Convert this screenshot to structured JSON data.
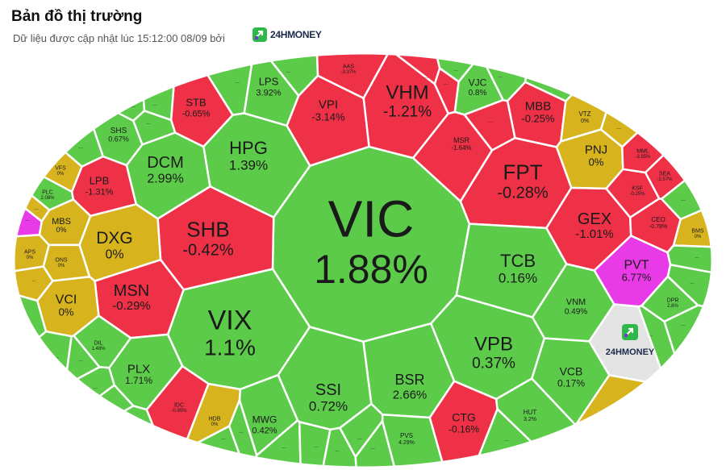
{
  "header": {
    "title": "Bản đồ thị trường",
    "subtitle": "Dữ liệu được cập nhật lúc 15:12:00 08/09 bởi",
    "brand": "24HMONEY"
  },
  "colors": {
    "up": "#5ccb4a",
    "down": "#ef3147",
    "flat": "#d7b41e",
    "ceiling": "#e83ae6",
    "none": "#e3e3e3",
    "background": "#ffffff"
  },
  "tiles": [
    {
      "symbol": "VIC",
      "change": "1.88%",
      "status": "up"
    },
    {
      "symbol": "VHM",
      "change": "-1.21%",
      "status": "down"
    },
    {
      "symbol": "VIX",
      "change": "1.1%",
      "status": "up"
    },
    {
      "symbol": "FPT",
      "change": "-0.28%",
      "status": "down"
    },
    {
      "symbol": "HPG",
      "change": "1.39%",
      "status": "up"
    },
    {
      "symbol": "SHB",
      "change": "-0.42%",
      "status": "down"
    },
    {
      "symbol": "VPB",
      "change": "0.37%",
      "status": "up"
    },
    {
      "symbol": "TCB",
      "change": "0.16%",
      "status": "up"
    },
    {
      "symbol": "SSI",
      "change": "0.72%",
      "status": "up"
    },
    {
      "symbol": "BSR",
      "change": "2.66%",
      "status": "up"
    },
    {
      "symbol": "MSN",
      "change": "-0.29%",
      "status": "down"
    },
    {
      "symbol": "DCM",
      "change": "2.99%",
      "status": "up"
    },
    {
      "symbol": "GEX",
      "change": "-1.01%",
      "status": "down"
    },
    {
      "symbol": "DXG",
      "change": "0%",
      "status": "flat"
    },
    {
      "symbol": "PVT",
      "change": "6.77%",
      "status": "ceiling"
    },
    {
      "symbol": "VPI",
      "change": "-3.14%",
      "status": "down"
    },
    {
      "symbol": "MBB",
      "change": "-0.25%",
      "status": "down"
    },
    {
      "symbol": "STB",
      "change": "-0.65%",
      "status": "down"
    },
    {
      "symbol": "LPB",
      "change": "-1.31%",
      "status": "down"
    },
    {
      "symbol": "PLX",
      "change": "1.71%",
      "status": "up"
    },
    {
      "symbol": "VCB",
      "change": "0.17%",
      "status": "up"
    },
    {
      "symbol": "VCI",
      "change": "0%",
      "status": "flat"
    },
    {
      "symbol": "CTG",
      "change": "-0.16%",
      "status": "down"
    },
    {
      "symbol": "PNJ",
      "change": "0%",
      "status": "flat"
    },
    {
      "symbol": "LPS",
      "change": "3.92%",
      "status": "up"
    },
    {
      "symbol": "VNM",
      "change": "0.49%",
      "status": "up"
    },
    {
      "symbol": "MWG",
      "change": "0.42%",
      "status": "up"
    },
    {
      "symbol": "VJC",
      "change": "0.8%",
      "status": "up"
    },
    {
      "symbol": "SHS",
      "change": "0.67%",
      "status": "up"
    },
    {
      "symbol": "MSR",
      "change": "-1.64%",
      "status": "down"
    },
    {
      "symbol": "MBS",
      "change": "0%",
      "status": "flat"
    },
    {
      "symbol": "VTZ",
      "change": "0%",
      "status": "flat"
    },
    {
      "symbol": "CEO",
      "change": "-0.78%",
      "status": "down"
    },
    {
      "symbol": "PVS",
      "change": "4.29%",
      "status": "up"
    },
    {
      "symbol": "HUT",
      "change": "3.2%",
      "status": "up"
    },
    {
      "symbol": "KSF",
      "change": "-0.25%",
      "status": "down"
    },
    {
      "symbol": "ONS",
      "change": "0%",
      "status": "flat"
    },
    {
      "symbol": "APS",
      "change": "0%",
      "status": "flat"
    },
    {
      "symbol": "HDB",
      "change": "0%",
      "status": "flat"
    },
    {
      "symbol": "BMS",
      "change": "0%",
      "status": "flat"
    },
    {
      "symbol": "IDC",
      "change": "-0.95%",
      "status": "down"
    },
    {
      "symbol": "DIL",
      "change": "1.48%",
      "status": "up"
    },
    {
      "symbol": "PLC",
      "change": "2.08%",
      "status": "up"
    },
    {
      "symbol": "MML",
      "change": "-3.85%",
      "status": "down"
    },
    {
      "symbol": "SEA",
      "change": "-2.57%",
      "status": "down"
    },
    {
      "symbol": "AAS",
      "change": "-3.37%",
      "status": "down"
    },
    {
      "symbol": "DPR",
      "change": "2.8%",
      "status": "up"
    },
    {
      "symbol": "VFS",
      "change": "0%",
      "status": "flat"
    }
  ],
  "more_label": "...",
  "more_tiles": [
    {
      "status": "up"
    },
    {
      "status": "up"
    },
    {
      "status": "up"
    },
    {
      "status": "up"
    },
    {
      "status": "up"
    },
    {
      "status": "up"
    },
    {
      "status": "flat"
    },
    {
      "status": "flat"
    },
    {
      "status": "up"
    },
    {
      "status": "up"
    },
    {
      "status": "up"
    },
    {
      "status": "up"
    },
    {
      "status": "up"
    },
    {
      "status": "up"
    },
    {
      "status": "up"
    },
    {
      "status": "up"
    },
    {
      "status": "up"
    },
    {
      "status": "up"
    },
    {
      "status": "up"
    },
    {
      "status": "up"
    },
    {
      "status": "up"
    },
    {
      "status": "up"
    },
    {
      "status": "down"
    },
    {
      "status": "down"
    },
    {
      "status": "down"
    },
    {
      "status": "ceiling"
    },
    {
      "status": "up"
    },
    {
      "status": "up"
    },
    {
      "status": "flat"
    },
    {
      "status": "up"
    },
    {
      "status": "up"
    },
    {
      "status": "up"
    },
    {
      "status": "up"
    },
    {
      "status": "up"
    },
    {
      "status": "flat"
    },
    {
      "status": "up"
    }
  ],
  "watermark": {
    "label": "24HMONEY",
    "icon": "24hmoney-logo-icon"
  }
}
